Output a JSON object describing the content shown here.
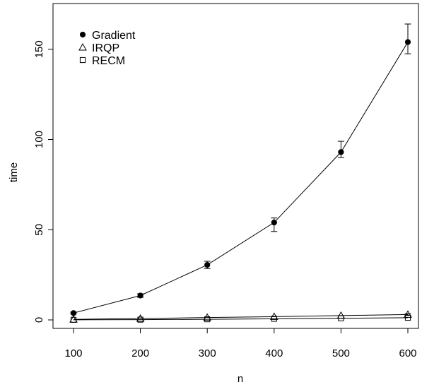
{
  "chart_data": {
    "type": "line",
    "xlabel": "n",
    "ylabel": "time",
    "x": [
      100,
      200,
      300,
      400,
      500,
      600
    ],
    "xlim": [
      100,
      600
    ],
    "ylim": [
      0,
      155
    ],
    "x_ticks": [
      100,
      200,
      300,
      400,
      500,
      600
    ],
    "y_ticks": [
      0,
      50,
      100,
      150
    ],
    "grid": false,
    "legend_position": "top-left",
    "series": [
      {
        "name": "Gradient",
        "marker": "filled-circle",
        "values": [
          3.8,
          13.5,
          30.5,
          54.0,
          93.0,
          154.0
        ],
        "error_low": [
          3.3,
          12.5,
          28.5,
          49.0,
          90.0,
          147.5
        ],
        "error_high": [
          4.3,
          14.5,
          32.5,
          56.5,
          99.0,
          164.0
        ]
      },
      {
        "name": "IRQP",
        "marker": "open-triangle",
        "values": [
          0.3,
          0.8,
          1.3,
          1.8,
          2.4,
          3.0
        ],
        "error_low": [
          0.2,
          0.6,
          1.1,
          1.5,
          2.0,
          2.5
        ],
        "error_high": [
          0.4,
          1.0,
          1.5,
          2.1,
          2.8,
          3.5
        ]
      },
      {
        "name": "RECM",
        "marker": "open-square",
        "values": [
          0.05,
          0.15,
          0.35,
          0.6,
          0.9,
          1.2
        ],
        "error_low": [
          0.02,
          0.1,
          0.25,
          0.45,
          0.7,
          0.95
        ],
        "error_high": [
          0.08,
          0.2,
          0.45,
          0.75,
          1.1,
          1.45
        ]
      }
    ]
  }
}
